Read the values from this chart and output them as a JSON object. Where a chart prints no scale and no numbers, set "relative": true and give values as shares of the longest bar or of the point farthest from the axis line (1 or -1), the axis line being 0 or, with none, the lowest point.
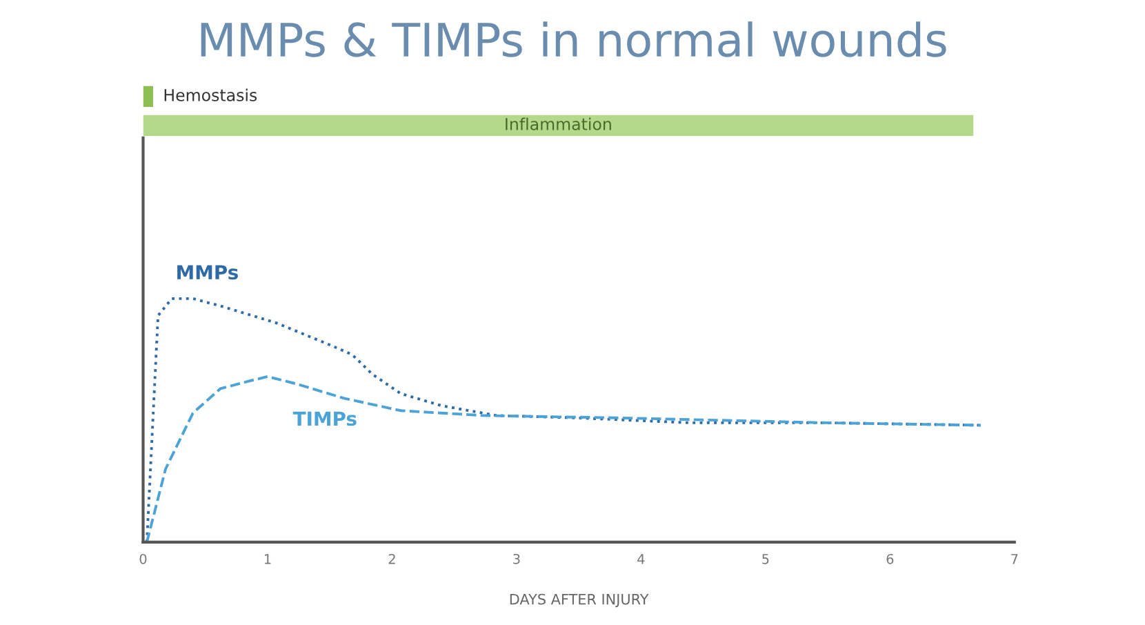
{
  "chart_data": [
    {
      "type": "bar",
      "orientation": "horizontal",
      "title": "MMPs & TIMPs in normal wounds",
      "categories": [
        "Hemostasis",
        "Inflammation"
      ],
      "values": [
        0.08,
        6.67
      ],
      "colors": [
        "#8cc152",
        "#b5d98a"
      ],
      "xlim": [
        0,
        7
      ],
      "tick_labels": false
    },
    {
      "type": "line",
      "xlabel": "DAYS AFTER INJURY",
      "relative": true,
      "xlim": [
        0,
        7
      ],
      "xticks": [
        0,
        1,
        2,
        3,
        4,
        5,
        6,
        7
      ],
      "legend": false,
      "series": [
        {
          "name": "MMPs",
          "color": "#2e6aa6",
          "line_style": "dotted",
          "x": [
            0.03,
            0.12,
            0.23,
            0.4,
            0.62,
            1.07,
            1.5,
            1.68,
            1.84,
            2.07,
            2.4,
            2.84,
            3.5,
            4.4,
            5.5,
            6.73
          ],
          "values": [
            0,
            0.93,
            1.0,
            1.0,
            0.97,
            0.9,
            0.81,
            0.77,
            0.69,
            0.61,
            0.56,
            0.52,
            0.51,
            0.49,
            0.49,
            0.48
          ]
        },
        {
          "name": "TIMPs",
          "color": "#4ba3d8",
          "line_style": "dashed",
          "x": [
            0.03,
            0.18,
            0.4,
            0.62,
            0.84,
            1.0,
            1.23,
            1.62,
            2.07,
            2.73,
            3.84,
            5.5,
            6.73
          ],
          "values": [
            0,
            0.3,
            0.53,
            0.63,
            0.66,
            0.68,
            0.65,
            0.59,
            0.54,
            0.52,
            0.51,
            0.49,
            0.48
          ]
        }
      ]
    }
  ]
}
